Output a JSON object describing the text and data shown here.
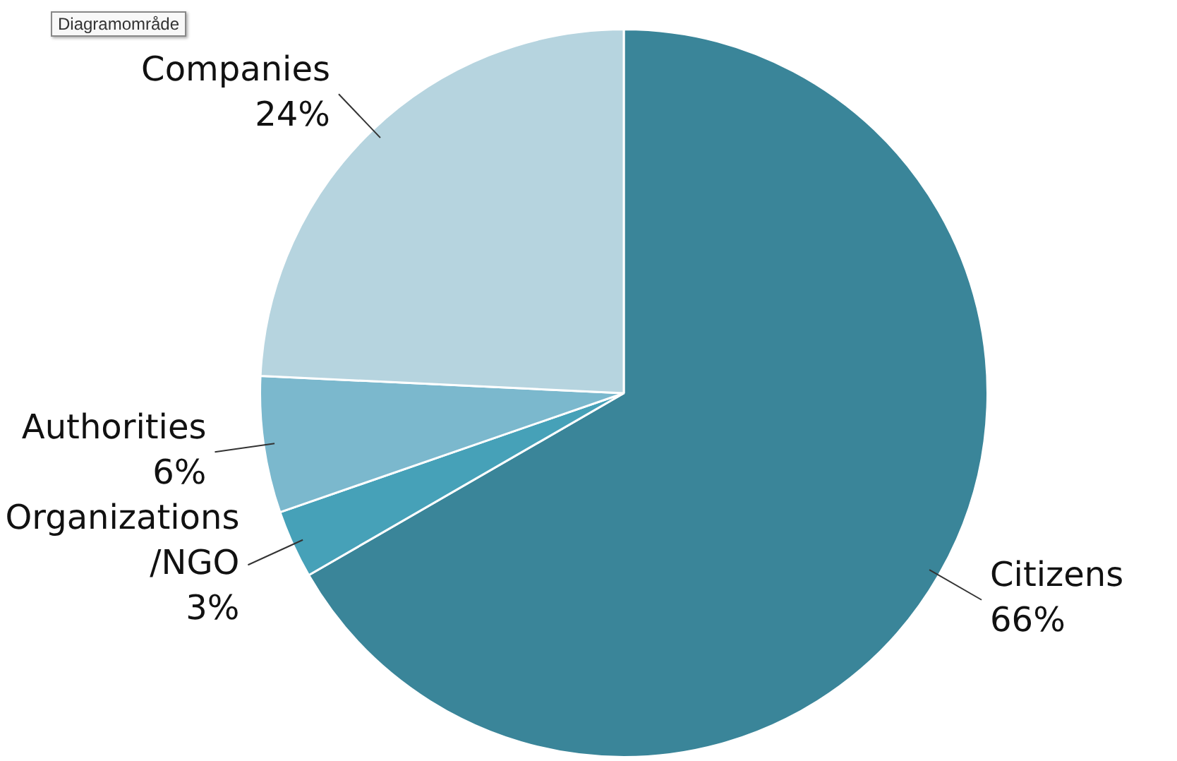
{
  "chart_data": {
    "type": "pie",
    "categories": [
      "Citizens",
      "Organizations/NGO",
      "Authorities",
      "Companies"
    ],
    "values": [
      66,
      3,
      6,
      24
    ],
    "value_labels": [
      "66%",
      "3%",
      "6%",
      "24%"
    ],
    "colors": [
      "#3a8599",
      "#46a1b8",
      "#7bb8cd",
      "#b6d4df"
    ],
    "annotations": [
      "Diagramområde"
    ],
    "legend": false
  }
}
